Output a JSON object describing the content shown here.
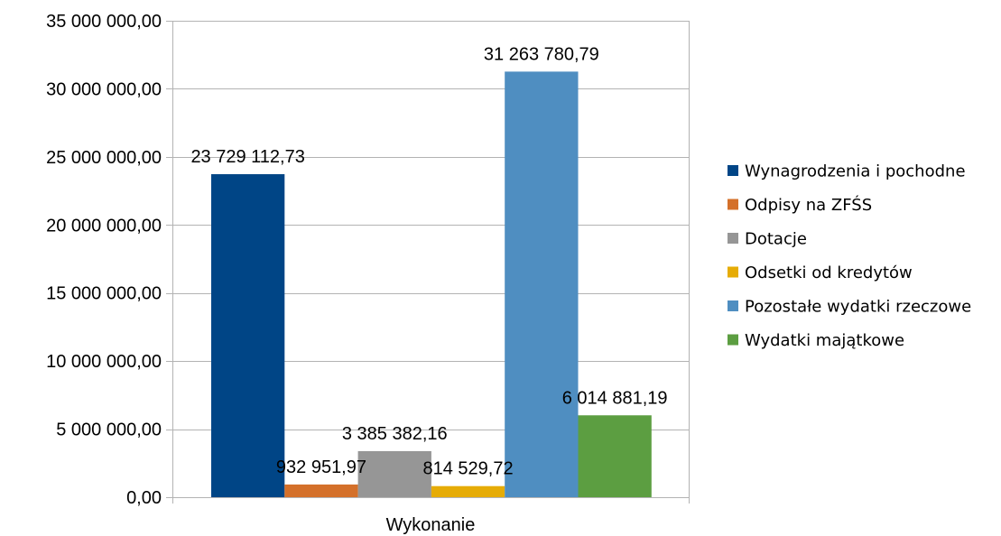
{
  "chart_data": {
    "type": "bar",
    "categories": [
      "Wykonanie"
    ],
    "series": [
      {
        "name": "Wynagrodzenia i pochodne",
        "values": [
          23729112.73
        ],
        "label": "23 729 112,73",
        "color": "#004586"
      },
      {
        "name": "Odpisy na ZFŚS",
        "values": [
          932951.97
        ],
        "label": "932 951,97",
        "color": "#d4702a"
      },
      {
        "name": "Dotacje",
        "values": [
          3385382.16
        ],
        "label": "3 385 382,16",
        "color": "#969696"
      },
      {
        "name": "Odsetki od kredytów",
        "values": [
          814529.72
        ],
        "label": "814 529,72",
        "color": "#e6ac06"
      },
      {
        "name": "Pozostałe wydatki rzeczowe",
        "values": [
          31263780.79
        ],
        "label": "31 263 780,79",
        "color": "#4f8ec1"
      },
      {
        "name": "Wydatki majątkowe",
        "values": [
          6014881.19
        ],
        "label": "6 014 881,19",
        "color": "#5c9e41"
      }
    ],
    "ylim": [
      0,
      35000000
    ],
    "yticks": [
      {
        "value": 0,
        "label": "0,00"
      },
      {
        "value": 5000000,
        "label": "5 000 000,00"
      },
      {
        "value": 10000000,
        "label": "10 000 000,00"
      },
      {
        "value": 15000000,
        "label": "15 000 000,00"
      },
      {
        "value": 20000000,
        "label": "20 000 000,00"
      },
      {
        "value": 25000000,
        "label": "25 000 000,00"
      },
      {
        "value": 30000000,
        "label": "30 000 000,00"
      },
      {
        "value": 35000000,
        "label": "35 000 000,00"
      }
    ],
    "title": "",
    "xlabel": "",
    "ylabel": "",
    "grid": true,
    "legend": "right"
  }
}
